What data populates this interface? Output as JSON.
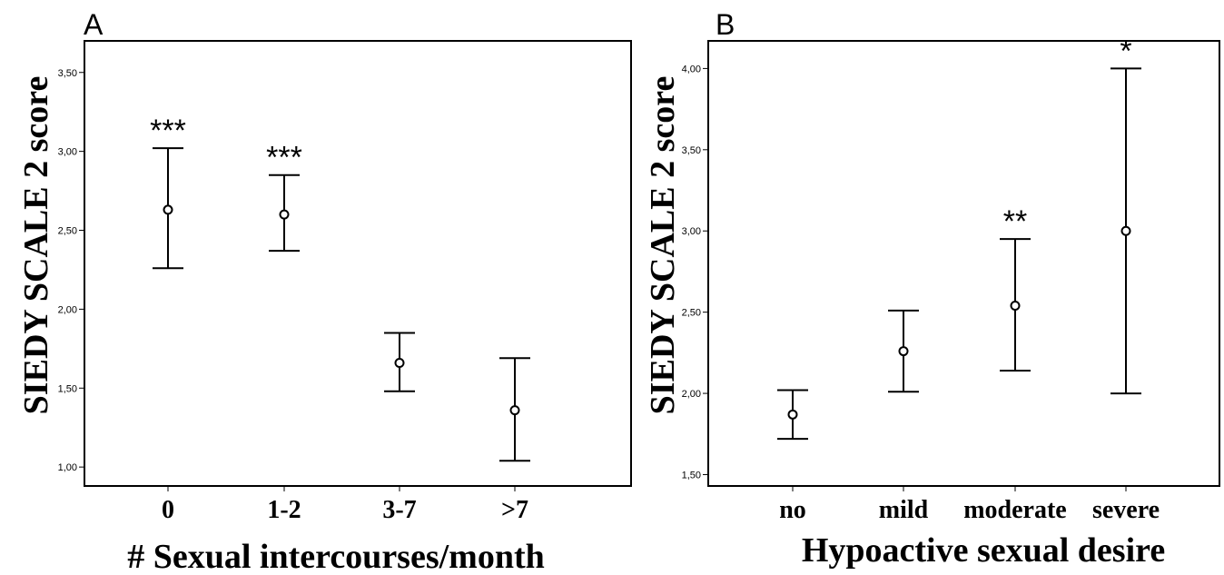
{
  "chart_data": [
    {
      "panel": "A",
      "type": "scatter",
      "subtype": "error-bar",
      "xlabel": "# Sexual intercourses/month",
      "ylabel": "SIEDY SCALE  2 score",
      "categories": [
        "0",
        "1-2",
        "3-7",
        ">7"
      ],
      "mean": [
        2.63,
        2.6,
        1.66,
        1.36
      ],
      "lower": [
        2.26,
        2.37,
        1.48,
        1.04
      ],
      "upper": [
        3.02,
        2.85,
        1.85,
        1.69
      ],
      "significance": [
        "***",
        "***",
        "",
        ""
      ],
      "ylim": [
        0.88,
        3.7
      ],
      "yticks": [
        "1,00",
        "1,50",
        "2,00",
        "2,50",
        "3,00",
        "3,50"
      ],
      "ytick_values": [
        1.0,
        1.5,
        2.0,
        2.5,
        3.0,
        3.5
      ],
      "grid": false,
      "legend": "none"
    },
    {
      "panel": "B",
      "type": "scatter",
      "subtype": "error-bar",
      "xlabel": "Hypoactive sexual desire",
      "ylabel": "SIEDY SCALE  2 score",
      "categories": [
        "no",
        "mild",
        "moderate",
        "severe"
      ],
      "mean": [
        1.87,
        2.26,
        2.54,
        3.0
      ],
      "lower": [
        1.72,
        2.01,
        2.14,
        2.0
      ],
      "upper": [
        2.02,
        2.51,
        2.95,
        4.0
      ],
      "significance": [
        "",
        "",
        "**",
        "*"
      ],
      "ylim": [
        1.43,
        4.17
      ],
      "yticks": [
        "1,50",
        "2,00",
        "2,50",
        "3,00",
        "3,50",
        "4,00"
      ],
      "ytick_values": [
        1.5,
        2.0,
        2.5,
        3.0,
        3.5,
        4.0
      ],
      "grid": false,
      "legend": "none"
    }
  ]
}
